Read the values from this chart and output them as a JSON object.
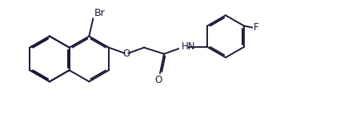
{
  "background_color": "#ffffff",
  "line_color": "#1a1a3a",
  "line_width": 1.4,
  "text_color": "#1a1a3a",
  "font_size": 8.5,
  "fig_width": 4.31,
  "fig_height": 1.47,
  "dpi": 100,
  "xlim": [
    0,
    4.31
  ],
  "ylim": [
    0,
    1.47
  ]
}
